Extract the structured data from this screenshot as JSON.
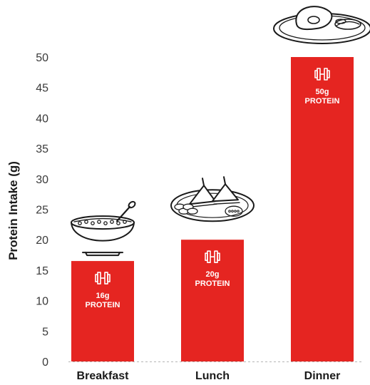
{
  "chart_data": {
    "type": "bar",
    "title": "",
    "xlabel": "",
    "ylabel": "Protein Intake (g)",
    "ylim": [
      0,
      50
    ],
    "yticks": [
      0,
      5,
      10,
      15,
      20,
      25,
      30,
      35,
      40,
      45,
      50
    ],
    "grid": false,
    "categories": [
      "Breakfast",
      "Lunch",
      "Dinner"
    ],
    "values": [
      16.5,
      20,
      50
    ],
    "bar_labels": [
      {
        "amount": "16g",
        "unit": "PROTEIN"
      },
      {
        "amount": "20g",
        "unit": "PROTEIN"
      },
      {
        "amount": "50g",
        "unit": "PROTEIN"
      }
    ],
    "bar_color": "#e52521",
    "icons": [
      "cereal-bowl-icon",
      "sandwich-plate-icon",
      "steak-plate-icon"
    ],
    "bar_icon": "dumbbell-icon"
  }
}
